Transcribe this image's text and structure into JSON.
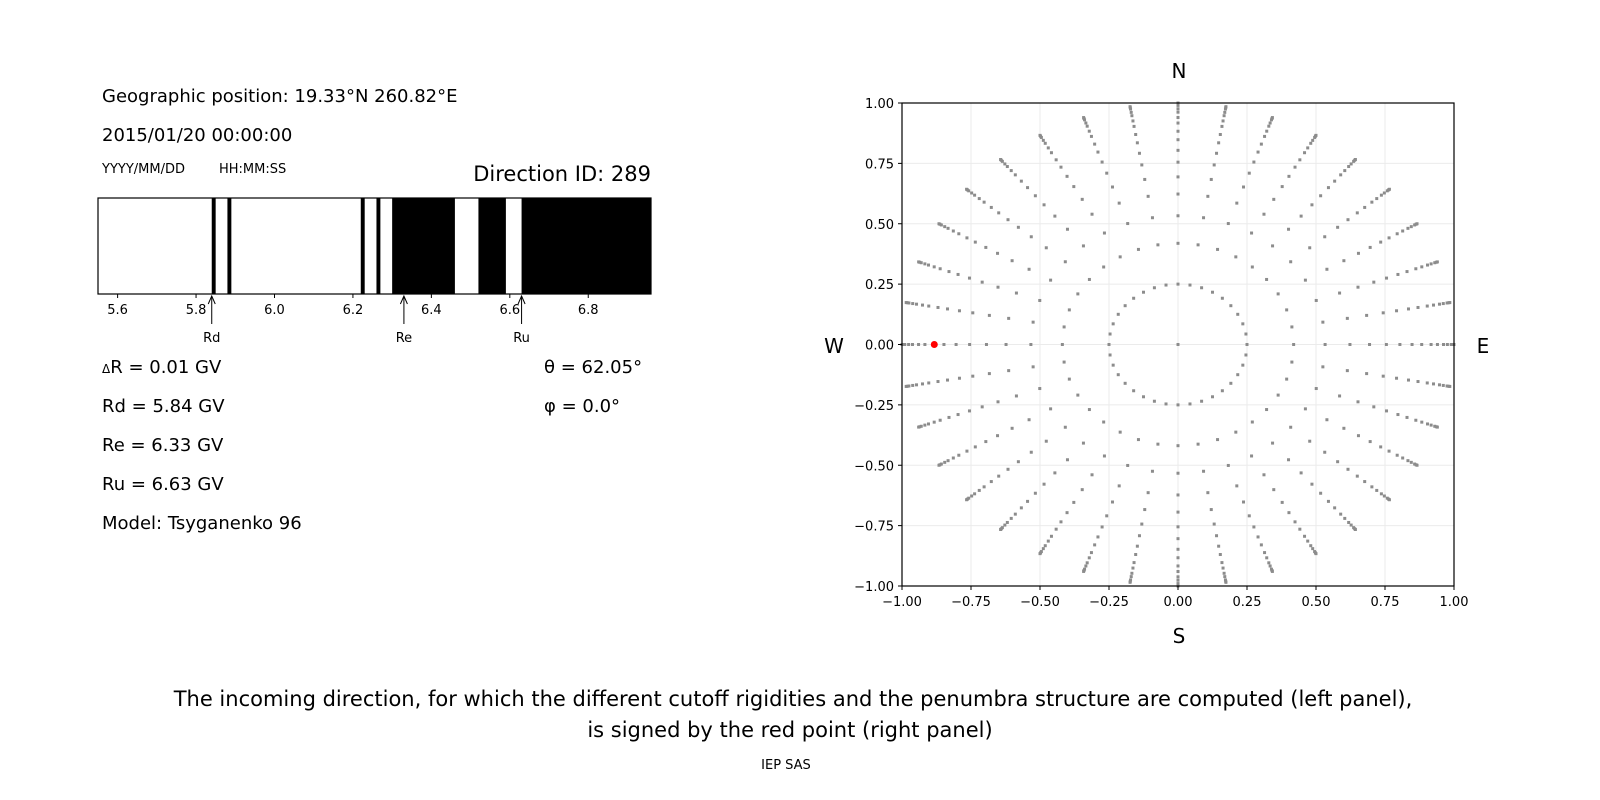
{
  "left_panel": {
    "geo_position": "Geographic position: 19.33°N 260.82°E",
    "datetime": "2015/01/20 00:00:00",
    "date_format": "YYYY/MM/DD",
    "time_format": "HH:MM:SS",
    "direction_id": "Direction ID: 289",
    "delta_r_symbol": "Δ",
    "delta_r": "R = 0.01 GV",
    "rd": "Rd = 5.84 GV",
    "re": "Re = 6.33 GV",
    "ru": "Ru = 6.63 GV",
    "model": "Model: Tsyganenko 96",
    "theta": "θ = 62.05°",
    "phi": "φ = 0.0°"
  },
  "caption": {
    "line1": "The incoming direction, for which the different cutoff rigidities and the penumbra structure are computed (left panel),",
    "line2": "is signed by the red point (right panel)",
    "credit": "IEP SAS"
  },
  "chart_data": [
    {
      "type": "penumbra-bar",
      "xlim": [
        5.55,
        6.96
      ],
      "xticks": [
        "5.6",
        "5.8",
        "6.0",
        "6.2",
        "6.4",
        "6.6",
        "6.8"
      ],
      "xtick_values": [
        5.6,
        5.8,
        6.0,
        6.2,
        6.4,
        6.6,
        6.8
      ],
      "forbidden_bands_gv": [
        [
          5.84,
          5.85
        ],
        [
          5.88,
          5.89
        ],
        [
          6.22,
          6.23
        ],
        [
          6.26,
          6.27
        ],
        [
          6.3,
          6.46
        ],
        [
          6.52,
          6.59
        ],
        [
          6.63,
          6.96
        ]
      ],
      "colors": {
        "forbidden": "#000000",
        "allowed": "#ffffff"
      },
      "markers": [
        {
          "label": "Rd",
          "value": 5.84
        },
        {
          "label": "Re",
          "value": 6.33
        },
        {
          "label": "Ru",
          "value": 6.63
        }
      ]
    },
    {
      "type": "scatter",
      "xlim": [
        -1.0,
        1.0
      ],
      "ylim": [
        -1.0,
        1.0
      ],
      "xticks": [
        "−1.00",
        "−0.75",
        "−0.50",
        "−0.25",
        "0.00",
        "0.25",
        "0.50",
        "0.75",
        "1.00"
      ],
      "yticks": [
        "−1.00",
        "−0.75",
        "−0.50",
        "−0.25",
        "0.00",
        "0.25",
        "0.50",
        "0.75",
        "1.00"
      ],
      "tick_values": [
        -1.0,
        -0.75,
        -0.5,
        -0.25,
        0.0,
        0.25,
        0.5,
        0.75,
        1.0
      ],
      "grid": true,
      "direction_labels": {
        "north": "N",
        "south": "S",
        "east": "E",
        "west": "W"
      },
      "grid_points": {
        "center": [
          0,
          0
        ],
        "inner_circle_radius": 0.25,
        "inner_circle_step_deg": 10,
        "ray_step_deg": 10,
        "ray_radii": [
          0.419,
          0.533,
          0.623,
          0.694,
          0.755,
          0.804,
          0.848,
          0.883,
          0.917,
          0.94,
          0.962,
          0.976,
          0.99,
          0.996,
          1.0
        ]
      },
      "selected_point": {
        "x": -0.883,
        "y": 0.0
      },
      "colors": {
        "points": "#8c8c8c",
        "selected": "#ff0000",
        "grid": "#ebebeb"
      }
    }
  ]
}
